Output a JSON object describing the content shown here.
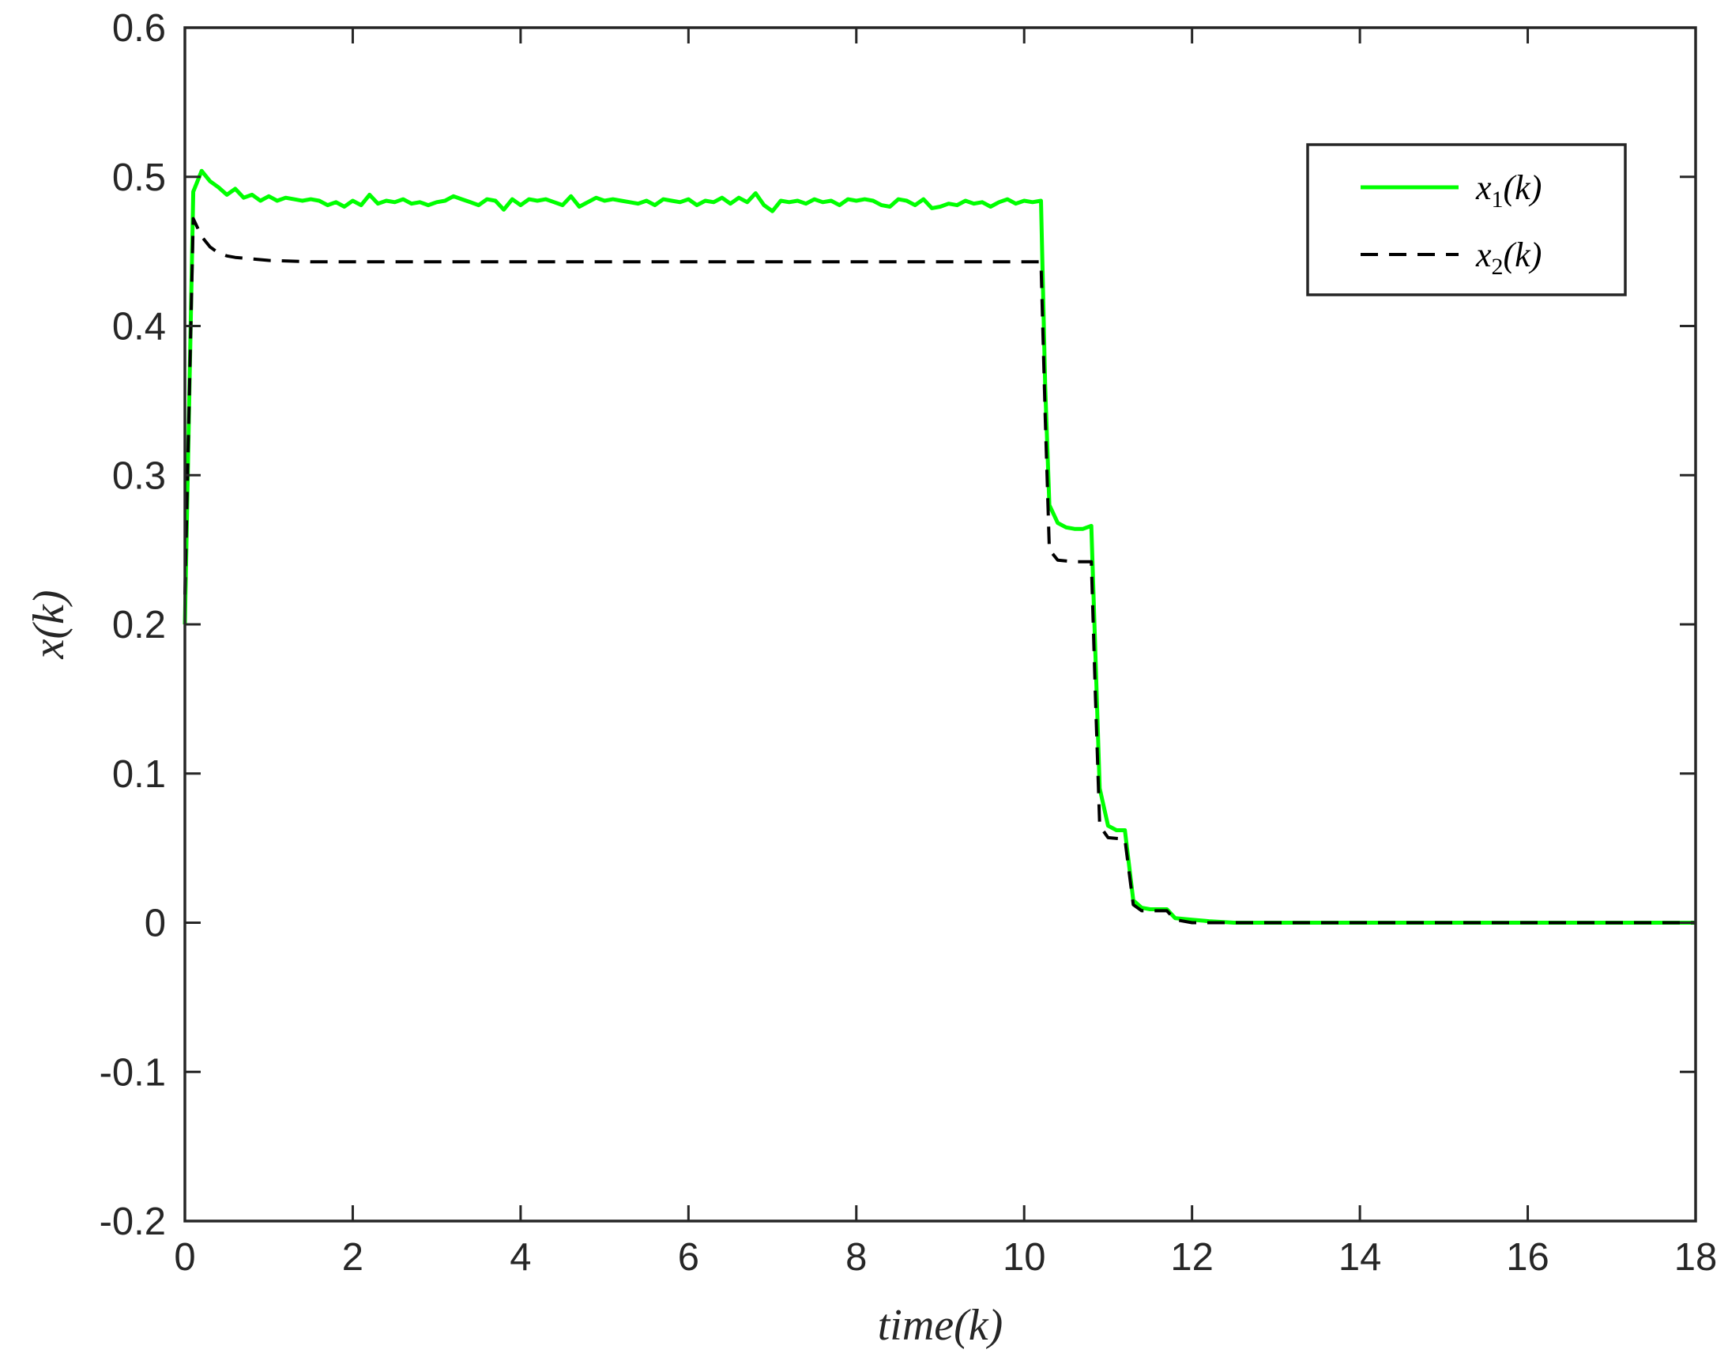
{
  "chart_data": {
    "type": "line",
    "title": "",
    "xlabel": "time(k)",
    "ylabel": "x(k)",
    "xlim": [
      0,
      18
    ],
    "ylim": [
      -0.2,
      0.6
    ],
    "xticks": [
      0,
      2,
      4,
      6,
      8,
      10,
      12,
      14,
      16,
      18
    ],
    "xtick_labels": [
      "0",
      "2",
      "4",
      "6",
      "8",
      "10",
      "12",
      "14",
      "16",
      "18"
    ],
    "yticks": [
      -0.2,
      -0.1,
      0,
      0.1,
      0.2,
      0.3,
      0.4,
      0.5,
      0.6
    ],
    "ytick_labels": [
      "-0.2",
      "-0.1",
      "0",
      "0.1",
      "0.2",
      "0.3",
      "0.4",
      "0.5",
      "0.6"
    ],
    "grid": false,
    "legend_position": "top-right",
    "series": [
      {
        "name": "x1(k)",
        "legend_base": "x",
        "legend_sub": "1",
        "legend_suffix": "(k)",
        "color": "#00ff00",
        "line_style": "solid",
        "points": [
          [
            0.0,
            0.2
          ],
          [
            0.1,
            0.49
          ],
          [
            0.2,
            0.504
          ],
          [
            0.3,
            0.497
          ],
          [
            0.4,
            0.493
          ],
          [
            0.5,
            0.488
          ],
          [
            0.6,
            0.492
          ],
          [
            0.7,
            0.486
          ],
          [
            0.8,
            0.488
          ],
          [
            0.9,
            0.484
          ],
          [
            1.0,
            0.487
          ],
          [
            1.1,
            0.484
          ],
          [
            1.2,
            0.486
          ],
          [
            1.3,
            0.485
          ],
          [
            1.4,
            0.484
          ],
          [
            1.5,
            0.485
          ],
          [
            1.6,
            0.484
          ],
          [
            1.7,
            0.481
          ],
          [
            1.8,
            0.483
          ],
          [
            1.9,
            0.48
          ],
          [
            2.0,
            0.484
          ],
          [
            2.1,
            0.481
          ],
          [
            2.2,
            0.488
          ],
          [
            2.3,
            0.482
          ],
          [
            2.4,
            0.484
          ],
          [
            2.5,
            0.483
          ],
          [
            2.6,
            0.485
          ],
          [
            2.7,
            0.482
          ],
          [
            2.8,
            0.483
          ],
          [
            2.9,
            0.481
          ],
          [
            3.0,
            0.483
          ],
          [
            3.1,
            0.484
          ],
          [
            3.2,
            0.487
          ],
          [
            3.3,
            0.485
          ],
          [
            3.4,
            0.483
          ],
          [
            3.5,
            0.481
          ],
          [
            3.6,
            0.485
          ],
          [
            3.7,
            0.484
          ],
          [
            3.8,
            0.478
          ],
          [
            3.9,
            0.485
          ],
          [
            4.0,
            0.481
          ],
          [
            4.1,
            0.485
          ],
          [
            4.2,
            0.484
          ],
          [
            4.3,
            0.485
          ],
          [
            4.4,
            0.483
          ],
          [
            4.5,
            0.481
          ],
          [
            4.6,
            0.487
          ],
          [
            4.7,
            0.48
          ],
          [
            4.8,
            0.483
          ],
          [
            4.9,
            0.486
          ],
          [
            5.0,
            0.484
          ],
          [
            5.1,
            0.485
          ],
          [
            5.2,
            0.484
          ],
          [
            5.3,
            0.483
          ],
          [
            5.4,
            0.482
          ],
          [
            5.5,
            0.484
          ],
          [
            5.6,
            0.481
          ],
          [
            5.7,
            0.485
          ],
          [
            5.8,
            0.484
          ],
          [
            5.9,
            0.483
          ],
          [
            6.0,
            0.485
          ],
          [
            6.1,
            0.481
          ],
          [
            6.2,
            0.484
          ],
          [
            6.3,
            0.483
          ],
          [
            6.4,
            0.486
          ],
          [
            6.5,
            0.482
          ],
          [
            6.6,
            0.486
          ],
          [
            6.7,
            0.483
          ],
          [
            6.8,
            0.489
          ],
          [
            6.9,
            0.481
          ],
          [
            7.0,
            0.477
          ],
          [
            7.1,
            0.484
          ],
          [
            7.2,
            0.483
          ],
          [
            7.3,
            0.484
          ],
          [
            7.4,
            0.482
          ],
          [
            7.5,
            0.485
          ],
          [
            7.6,
            0.483
          ],
          [
            7.7,
            0.484
          ],
          [
            7.8,
            0.481
          ],
          [
            7.9,
            0.485
          ],
          [
            8.0,
            0.484
          ],
          [
            8.1,
            0.485
          ],
          [
            8.2,
            0.484
          ],
          [
            8.3,
            0.481
          ],
          [
            8.4,
            0.48
          ],
          [
            8.5,
            0.485
          ],
          [
            8.6,
            0.484
          ],
          [
            8.7,
            0.481
          ],
          [
            8.8,
            0.485
          ],
          [
            8.9,
            0.479
          ],
          [
            9.0,
            0.48
          ],
          [
            9.1,
            0.482
          ],
          [
            9.2,
            0.481
          ],
          [
            9.3,
            0.484
          ],
          [
            9.4,
            0.482
          ],
          [
            9.5,
            0.483
          ],
          [
            9.6,
            0.48
          ],
          [
            9.7,
            0.483
          ],
          [
            9.8,
            0.485
          ],
          [
            9.9,
            0.482
          ],
          [
            10.0,
            0.484
          ],
          [
            10.1,
            0.483
          ],
          [
            10.2,
            0.484
          ],
          [
            10.25,
            0.36
          ],
          [
            10.3,
            0.28
          ],
          [
            10.4,
            0.268
          ],
          [
            10.5,
            0.265
          ],
          [
            10.6,
            0.264
          ],
          [
            10.7,
            0.264
          ],
          [
            10.8,
            0.266
          ],
          [
            10.9,
            0.09
          ],
          [
            11.0,
            0.065
          ],
          [
            11.1,
            0.062
          ],
          [
            11.2,
            0.062
          ],
          [
            11.3,
            0.015
          ],
          [
            11.4,
            0.01
          ],
          [
            11.5,
            0.009
          ],
          [
            11.6,
            0.009
          ],
          [
            11.7,
            0.009
          ],
          [
            11.8,
            0.003
          ],
          [
            12.0,
            0.002
          ],
          [
            12.2,
            0.001
          ],
          [
            12.5,
            0.0
          ],
          [
            13.0,
            0.0
          ],
          [
            14.0,
            0.0
          ],
          [
            15.0,
            0.0
          ],
          [
            16.0,
            0.0
          ],
          [
            17.0,
            0.0
          ],
          [
            18.0,
            0.0
          ]
        ]
      },
      {
        "name": "x2(k)",
        "legend_base": "x",
        "legend_sub": "2",
        "legend_suffix": "(k)",
        "color": "#000000",
        "line_style": "dashed",
        "points": [
          [
            0.0,
            0.22
          ],
          [
            0.1,
            0.472
          ],
          [
            0.2,
            0.46
          ],
          [
            0.3,
            0.453
          ],
          [
            0.4,
            0.449
          ],
          [
            0.5,
            0.447
          ],
          [
            0.6,
            0.446
          ],
          [
            0.8,
            0.445
          ],
          [
            1.0,
            0.444
          ],
          [
            1.5,
            0.443
          ],
          [
            2.0,
            0.443
          ],
          [
            4.0,
            0.443
          ],
          [
            6.0,
            0.443
          ],
          [
            8.0,
            0.443
          ],
          [
            10.0,
            0.443
          ],
          [
            10.2,
            0.443
          ],
          [
            10.25,
            0.34
          ],
          [
            10.3,
            0.25
          ],
          [
            10.4,
            0.243
          ],
          [
            10.6,
            0.242
          ],
          [
            10.8,
            0.242
          ],
          [
            10.85,
            0.15
          ],
          [
            10.9,
            0.065
          ],
          [
            11.0,
            0.057
          ],
          [
            11.2,
            0.056
          ],
          [
            11.3,
            0.012
          ],
          [
            11.4,
            0.008
          ],
          [
            11.6,
            0.008
          ],
          [
            11.7,
            0.008
          ],
          [
            11.8,
            0.002
          ],
          [
            12.0,
            0.0
          ],
          [
            13.0,
            0.0
          ],
          [
            14.0,
            0.0
          ],
          [
            15.0,
            0.0
          ],
          [
            16.0,
            0.0
          ],
          [
            17.0,
            0.0
          ],
          [
            18.0,
            0.0
          ]
        ]
      }
    ]
  }
}
